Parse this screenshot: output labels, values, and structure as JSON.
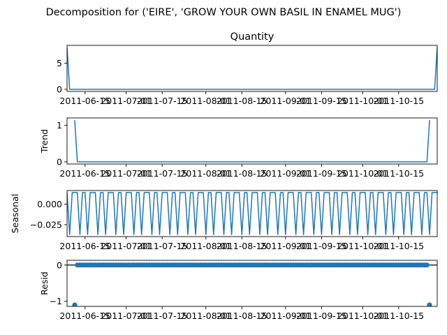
{
  "figure": {
    "suptitle": "Decomposition for ('EIRE', 'GROW YOUR OWN BASIL IN ENAMEL MUG')"
  },
  "colors": {
    "series": "#1f77b4",
    "axis": "#000000",
    "background": "#ffffff"
  },
  "chart_data": [
    {
      "type": "line",
      "title": "Quantity",
      "ylabel": "",
      "x_range": [
        "2011-06-08",
        "2011-10-30"
      ],
      "ylim": [
        -0.4,
        8.4
      ],
      "yticks": [
        0,
        5
      ],
      "ytick_labels": [
        "0",
        "5"
      ],
      "xtick_labels": [
        "2011-06-15",
        "2011-07-01",
        "2011-07-15",
        "2011-08-01",
        "2011-08-15",
        "2011-09-01",
        "2011-09-15",
        "2011-10-01",
        "2011-10-15"
      ],
      "series": [
        {
          "points": [
            {
              "x": "2011-06-08",
              "y": 8
            },
            {
              "x": "2011-06-09",
              "y": 0
            },
            {
              "x": "2011-10-29",
              "y": 0
            },
            {
              "x": "2011-10-30",
              "y": 8
            }
          ]
        }
      ],
      "grid": false
    },
    {
      "type": "line",
      "title": "",
      "ylabel": "Trend",
      "x_range": [
        "2011-06-08",
        "2011-10-30"
      ],
      "ylim": [
        -0.06,
        1.2
      ],
      "yticks": [
        0,
        1
      ],
      "ytick_labels": [
        "0",
        "1"
      ],
      "xtick_labels": [
        "2011-06-15",
        "2011-07-01",
        "2011-07-15",
        "2011-08-01",
        "2011-08-15",
        "2011-09-01",
        "2011-09-15",
        "2011-10-01",
        "2011-10-15"
      ],
      "series": [
        {
          "points": [
            {
              "x": "2011-06-11",
              "y": 1.14
            },
            {
              "x": "2011-06-12",
              "y": 0
            },
            {
              "x": "2011-10-26",
              "y": 0
            },
            {
              "x": "2011-10-27",
              "y": 1.14
            }
          ]
        }
      ],
      "grid": false
    },
    {
      "type": "line",
      "title": "",
      "ylabel": "Seasonal",
      "x_range": [
        "2011-06-08",
        "2011-10-30"
      ],
      "ylim": [
        -0.0395,
        0.0165
      ],
      "yticks": [
        0.0,
        -0.025
      ],
      "ytick_labels": [
        "0.000",
        "−0.025"
      ],
      "xtick_labels": [
        "2011-06-15",
        "2011-07-01",
        "2011-07-15",
        "2011-08-01",
        "2011-08-15",
        "2011-09-01",
        "2011-09-15",
        "2011-10-01",
        "2011-10-15"
      ],
      "period_days": 7,
      "weekly_pattern": [
        0.014,
        -0.037,
        0.014,
        0.014,
        0.014,
        -0.037,
        0.014
      ],
      "grid": false
    },
    {
      "type": "scatter",
      "title": "",
      "ylabel": "Resid",
      "x_range": [
        "2011-06-08",
        "2011-10-30"
      ],
      "ylim": [
        -1.14,
        0.13
      ],
      "yticks": [
        0,
        -1
      ],
      "ytick_labels": [
        "0",
        "−1"
      ],
      "xtick_labels": [
        "2011-06-15",
        "2011-07-01",
        "2011-07-15",
        "2011-08-01",
        "2011-08-15",
        "2011-09-01",
        "2011-09-15",
        "2011-10-01",
        "2011-10-15"
      ],
      "reference_line": 0,
      "outliers": [
        {
          "x": "2011-06-11",
          "y": -1.1
        },
        {
          "x": "2011-10-27",
          "y": -1.1
        }
      ],
      "baseline_range": [
        "2011-06-12",
        "2011-10-26"
      ],
      "baseline_value": 0,
      "grid": false
    }
  ]
}
